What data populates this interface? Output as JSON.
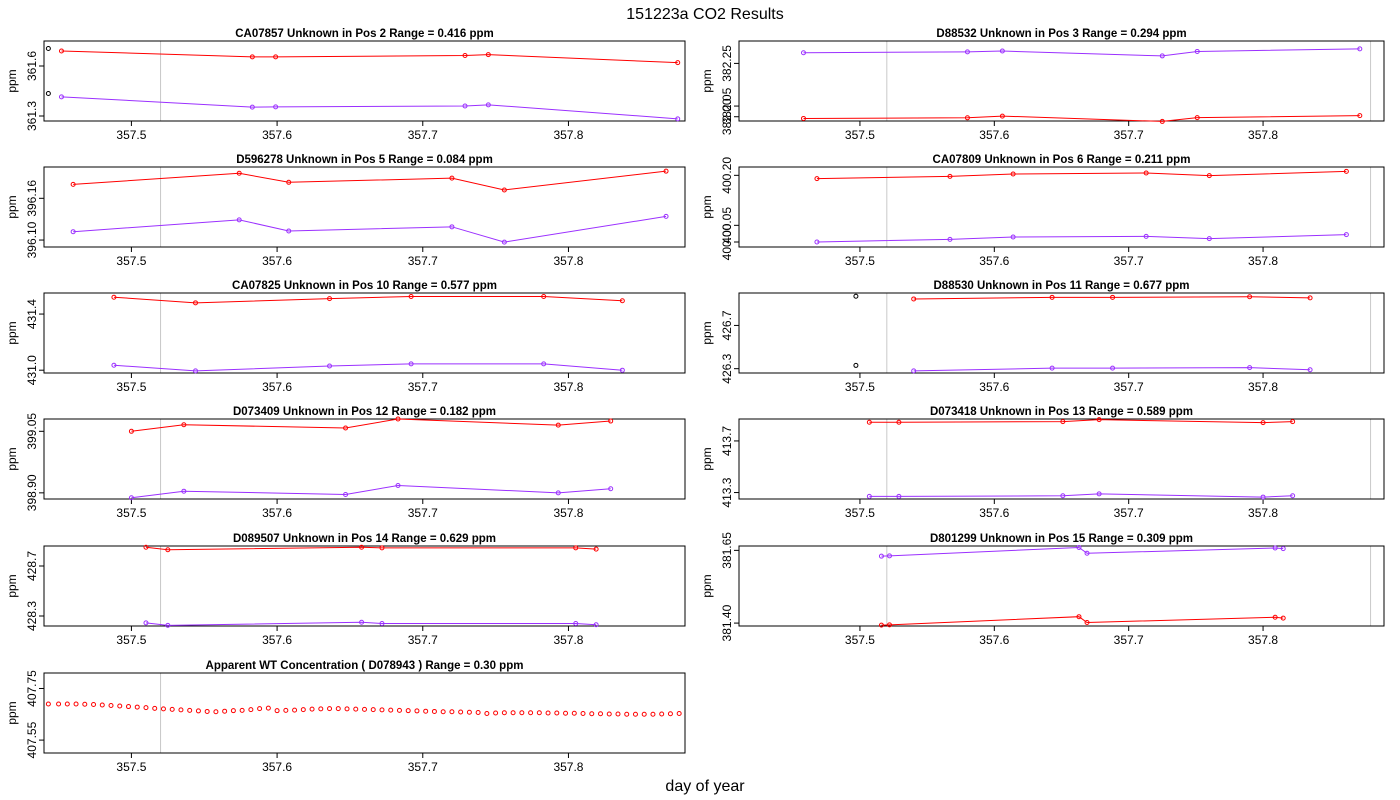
{
  "page": {
    "title": "151223a  CO2 Results",
    "xlabel": "day of year"
  },
  "colors": {
    "series_a": "#ff0000",
    "series_b": "#9b30ff",
    "outlier": "#000000",
    "vline": "#c8c8c8",
    "axis": "#000000"
  },
  "chart_data": [
    {
      "type": "line",
      "title": "CA07857    Unknown in Pos 2         Range =  0.416 ppm",
      "ylabel": "ppm",
      "xlim": [
        357.44,
        357.88
      ],
      "ylim": [
        361.27,
        361.75
      ],
      "x_ticks": [
        357.5,
        357.6,
        357.7,
        357.8
      ],
      "y_ticks": [
        361.3,
        361.6
      ],
      "vlines": [
        357.52
      ],
      "series": [
        {
          "name": "red",
          "color": "#ff0000",
          "x": [
            357.452,
            357.583,
            357.599,
            357.729,
            357.745,
            357.875
          ],
          "y": [
            361.69,
            361.655,
            361.655,
            361.663,
            361.668,
            361.62
          ]
        },
        {
          "name": "purple",
          "color": "#9b30ff",
          "x": [
            357.452,
            357.583,
            357.599,
            357.729,
            357.745,
            357.875
          ],
          "y": [
            361.415,
            361.353,
            361.355,
            361.36,
            361.367,
            361.283
          ]
        }
      ],
      "outliers": {
        "x": [
          357.443,
          357.443
        ],
        "y": [
          361.705,
          361.435
        ]
      }
    },
    {
      "type": "line",
      "title": "D88532    Unknown in Pos 3         Range =  0.294 ppm",
      "ylabel": "ppm",
      "xlim": [
        357.41,
        357.89
      ],
      "ylim": [
        381.98,
        382.355
      ],
      "x_ticks": [
        357.5,
        357.6,
        357.7,
        357.8
      ],
      "y_ticks": [
        382.0,
        382.05,
        382.25
      ],
      "vlines": [
        357.52,
        357.88
      ],
      "series": [
        {
          "name": "purple",
          "color": "#9b30ff",
          "x": [
            357.458,
            357.58,
            357.606,
            357.725,
            357.751,
            357.872
          ],
          "y": [
            382.3,
            382.304,
            382.308,
            382.285,
            382.306,
            382.318
          ]
        },
        {
          "name": "red",
          "color": "#ff0000",
          "x": [
            357.458,
            357.58,
            357.606,
            357.725,
            357.751,
            357.872
          ],
          "y": [
            381.992,
            381.995,
            382.003,
            381.978,
            381.996,
            382.005
          ]
        }
      ],
      "outliers": null
    },
    {
      "type": "line",
      "title": "D596278    Unknown in Pos 5         Range =  0.084 ppm",
      "ylabel": "ppm",
      "xlim": [
        357.44,
        357.88
      ],
      "ylim": [
        396.09,
        396.205
      ],
      "x_ticks": [
        357.5,
        357.6,
        357.7,
        357.8
      ],
      "y_ticks": [
        396.1,
        396.16
      ],
      "vlines": [
        357.52,
        357.88
      ],
      "series": [
        {
          "name": "red",
          "color": "#ff0000",
          "x": [
            357.46,
            357.574,
            357.608,
            357.72,
            357.756,
            357.867
          ],
          "y": [
            396.18,
            396.196,
            396.183,
            396.189,
            396.172,
            396.199
          ]
        },
        {
          "name": "purple",
          "color": "#9b30ff",
          "x": [
            357.46,
            357.574,
            357.608,
            357.72,
            357.756,
            357.867
          ],
          "y": [
            396.112,
            396.129,
            396.113,
            396.119,
            396.097,
            396.134
          ]
        }
      ],
      "outliers": null
    },
    {
      "type": "line",
      "title": "CA07809    Unknown in Pos 6         Range =  0.211 ppm",
      "ylabel": "ppm",
      "xlim": [
        357.41,
        357.89
      ],
      "ylim": [
        399.985,
        400.225
      ],
      "x_ticks": [
        357.5,
        357.6,
        357.7,
        357.8
      ],
      "y_ticks": [
        400.0,
        400.05,
        400.2
      ],
      "vlines": [
        357.52,
        357.88
      ],
      "series": [
        {
          "name": "red",
          "color": "#ff0000",
          "x": [
            357.468,
            357.567,
            357.614,
            357.713,
            357.76,
            357.862
          ],
          "y": [
            400.19,
            400.197,
            400.204,
            400.207,
            400.199,
            400.212
          ]
        },
        {
          "name": "purple",
          "color": "#9b30ff",
          "x": [
            357.468,
            357.567,
            357.614,
            357.713,
            357.76,
            357.862
          ],
          "y": [
            400.0,
            400.008,
            400.015,
            400.017,
            400.01,
            400.022
          ]
        }
      ],
      "outliers": null
    },
    {
      "type": "line",
      "title": "CA07825    Unknown in Pos 10         Range =  0.577 ppm",
      "ylabel": "ppm",
      "xlim": [
        357.44,
        357.88
      ],
      "ylim": [
        430.98,
        431.55
      ],
      "x_ticks": [
        357.5,
        357.6,
        357.7,
        357.8
      ],
      "y_ticks": [
        431.0,
        431.4
      ],
      "vlines": [
        357.52,
        357.88
      ],
      "series": [
        {
          "name": "red",
          "color": "#ff0000",
          "x": [
            357.488,
            357.544,
            357.636,
            357.692,
            357.783,
            357.837
          ],
          "y": [
            431.52,
            431.48,
            431.51,
            431.525,
            431.525,
            431.495
          ]
        },
        {
          "name": "purple",
          "color": "#9b30ff",
          "x": [
            357.488,
            357.544,
            357.636,
            357.692,
            357.783,
            357.837
          ],
          "y": [
            431.035,
            430.995,
            431.03,
            431.045,
            431.045,
            431.0
          ]
        }
      ],
      "outliers": null
    },
    {
      "type": "line",
      "title": "D88530    Unknown in Pos 11         Range =  0.677 ppm",
      "ylabel": "ppm",
      "xlim": [
        357.41,
        357.89
      ],
      "ylim": [
        426.26,
        427.0
      ],
      "x_ticks": [
        357.5,
        357.6,
        357.7,
        357.8
      ],
      "y_ticks": [
        426.3,
        426.7
      ],
      "vlines": [
        357.52,
        357.88
      ],
      "series": [
        {
          "name": "red",
          "color": "#ff0000",
          "x": [
            357.54,
            357.643,
            357.688,
            357.79,
            357.835
          ],
          "y": [
            426.945,
            426.96,
            426.96,
            426.965,
            426.955
          ]
        },
        {
          "name": "purple",
          "color": "#9b30ff",
          "x": [
            357.54,
            357.643,
            357.688,
            357.79,
            357.835
          ],
          "y": [
            426.28,
            426.305,
            426.305,
            426.31,
            426.29
          ]
        }
      ],
      "outliers": {
        "x": [
          357.497,
          357.497
        ],
        "y": [
          426.97,
          426.33
        ]
      }
    },
    {
      "type": "line",
      "title": "D073409    Unknown in Pos 12         Range =  0.182 ppm",
      "ylabel": "ppm",
      "xlim": [
        357.44,
        357.88
      ],
      "ylim": [
        398.885,
        399.08
      ],
      "x_ticks": [
        357.5,
        357.6,
        357.7,
        357.8
      ],
      "y_ticks": [
        398.9,
        399.05
      ],
      "vlines": [
        357.52,
        357.88
      ],
      "series": [
        {
          "name": "red",
          "color": "#ff0000",
          "x": [
            357.5,
            357.536,
            357.647,
            357.683,
            357.793,
            357.829
          ],
          "y": [
            399.05,
            399.066,
            399.058,
            399.08,
            399.065,
            399.075
          ]
        },
        {
          "name": "purple",
          "color": "#9b30ff",
          "x": [
            357.5,
            357.536,
            357.647,
            357.683,
            357.793,
            357.829
          ],
          "y": [
            398.888,
            398.904,
            398.896,
            398.918,
            398.9,
            398.91
          ]
        }
      ],
      "outliers": null
    },
    {
      "type": "line",
      "title": "D073418    Unknown in Pos 13         Range =  0.589 ppm",
      "ylabel": "ppm",
      "xlim": [
        357.41,
        357.89
      ],
      "ylim": [
        413.25,
        413.87
      ],
      "x_ticks": [
        357.5,
        357.6,
        357.7,
        357.8
      ],
      "y_ticks": [
        413.3,
        413.7
      ],
      "vlines": [
        357.52,
        357.88
      ],
      "series": [
        {
          "name": "red",
          "color": "#ff0000",
          "x": [
            357.507,
            357.529,
            357.651,
            357.678,
            357.8,
            357.822
          ],
          "y": [
            413.845,
            413.845,
            413.85,
            413.865,
            413.842,
            413.85
          ]
        },
        {
          "name": "purple",
          "color": "#9b30ff",
          "x": [
            357.507,
            357.529,
            357.651,
            357.678,
            357.8,
            357.822
          ],
          "y": [
            413.27,
            413.27,
            413.275,
            413.29,
            413.265,
            413.275
          ]
        }
      ],
      "outliers": null
    },
    {
      "type": "line",
      "title": "D089507    Unknown in Pos 14         Range =  0.629 ppm",
      "ylabel": "ppm",
      "xlim": [
        357.44,
        357.88
      ],
      "ylim": [
        428.22,
        428.86
      ],
      "x_ticks": [
        357.5,
        357.6,
        357.7,
        357.8
      ],
      "y_ticks": [
        428.3,
        428.7
      ],
      "vlines": [
        357.52,
        357.88
      ],
      "series": [
        {
          "name": "red",
          "color": "#ff0000",
          "x": [
            357.51,
            357.525,
            357.658,
            357.672,
            357.805,
            357.819
          ],
          "y": [
            428.85,
            428.83,
            428.85,
            428.845,
            428.845,
            428.835
          ]
        },
        {
          "name": "purple",
          "color": "#9b30ff",
          "x": [
            357.51,
            357.525,
            357.658,
            357.672,
            357.805,
            357.819
          ],
          "y": [
            428.245,
            428.225,
            428.25,
            428.24,
            428.24,
            428.23
          ]
        }
      ],
      "outliers": null
    },
    {
      "type": "line",
      "title": "D801299    Unknown in Pos 15         Range =  0.309 ppm",
      "ylabel": "ppm",
      "xlim": [
        357.41,
        357.89
      ],
      "ylim": [
        381.39,
        381.665
      ],
      "x_ticks": [
        357.5,
        357.6,
        357.7,
        357.8
      ],
      "y_ticks": [
        381.4,
        381.65
      ],
      "vlines": [
        357.52,
        357.88
      ],
      "series": [
        {
          "name": "purple",
          "color": "#9b30ff",
          "x": [
            357.516,
            357.522,
            357.663,
            357.669,
            357.809,
            357.815
          ],
          "y": [
            381.63,
            381.631,
            381.66,
            381.64,
            381.658,
            381.656
          ]
        },
        {
          "name": "red",
          "color": "#ff0000",
          "x": [
            357.516,
            357.522,
            357.663,
            357.669,
            357.809,
            357.815
          ],
          "y": [
            381.393,
            381.394,
            381.422,
            381.402,
            381.42,
            381.417
          ]
        }
      ],
      "outliers": null
    },
    {
      "type": "scatter",
      "title": "Apparent WT Concentration ( D078943 )         Range = 0.30 ppm",
      "ylabel": "ppm",
      "xlim": [
        357.44,
        357.88
      ],
      "ylim": [
        407.5,
        407.81
      ],
      "x_ticks": [
        357.5,
        357.6,
        357.7,
        357.8
      ],
      "y_ticks": [
        407.55,
        407.75
      ],
      "vlines": [
        357.52,
        357.88
      ],
      "series": [
        {
          "name": "red",
          "color": "#ff0000",
          "x": [
            357.443,
            357.45,
            357.456,
            357.462,
            357.468,
            357.474,
            357.48,
            357.486,
            357.492,
            357.498,
            357.504,
            357.51,
            357.516,
            357.522,
            357.528,
            357.534,
            357.54,
            357.546,
            357.552,
            357.558,
            357.564,
            357.57,
            357.576,
            357.582,
            357.588,
            357.594,
            357.6,
            357.606,
            357.612,
            357.618,
            357.624,
            357.63,
            357.636,
            357.642,
            357.648,
            357.654,
            357.66,
            357.666,
            357.672,
            357.678,
            357.684,
            357.69,
            357.696,
            357.702,
            357.708,
            357.714,
            357.72,
            357.726,
            357.732,
            357.738,
            357.744,
            357.75,
            357.756,
            357.762,
            357.768,
            357.774,
            357.78,
            357.786,
            357.792,
            357.798,
            357.804,
            357.81,
            357.816,
            357.822,
            357.828,
            357.834,
            357.84,
            357.846,
            357.852,
            357.858,
            357.864,
            357.87,
            357.876
          ],
          "y": [
            407.69,
            407.69,
            407.69,
            407.69,
            407.689,
            407.688,
            407.686,
            407.684,
            407.682,
            407.68,
            407.678,
            407.676,
            407.673,
            407.671,
            407.669,
            407.667,
            407.665,
            407.663,
            407.661,
            407.66,
            407.662,
            407.664,
            407.665,
            407.668,
            407.672,
            407.674,
            407.664,
            407.665,
            407.666,
            407.668,
            407.67,
            407.671,
            407.672,
            407.672,
            407.671,
            407.67,
            407.669,
            407.668,
            407.667,
            407.666,
            407.665,
            407.664,
            407.663,
            407.662,
            407.661,
            407.66,
            407.66,
            407.659,
            407.658,
            407.657,
            407.653,
            407.655,
            407.656,
            407.656,
            407.656,
            407.656,
            407.656,
            407.655,
            407.655,
            407.654,
            407.654,
            407.653,
            407.652,
            407.652,
            407.651,
            407.651,
            407.65,
            407.65,
            407.65,
            407.65,
            407.651,
            407.652,
            407.653
          ]
        }
      ],
      "outliers": null
    }
  ]
}
